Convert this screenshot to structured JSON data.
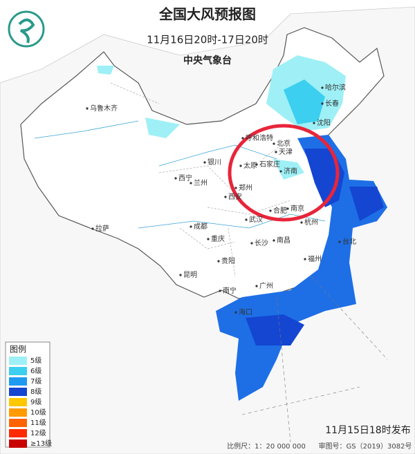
{
  "header": {
    "title": "全国大风预报图",
    "period": "11月16日20时-17日20时",
    "issuer": "中央气象台"
  },
  "cities": [
    "乌鲁木齐",
    "哈尔滨",
    "长春",
    "沈阳",
    "呼和浩特",
    "北京",
    "天津",
    "石家庄",
    "太原",
    "济南",
    "银川",
    "西宁",
    "兰州",
    "郑州",
    "西安",
    "合肥",
    "南京",
    "杭州",
    "拉萨",
    "成都",
    "重庆",
    "武汉",
    "长沙",
    "南昌",
    "福州",
    "台北",
    "贵阳",
    "昆明",
    "南宁",
    "广州",
    "海口"
  ],
  "legend": {
    "title": "图例",
    "items": [
      {
        "label": "5级",
        "color": "#9ef0f6"
      },
      {
        "label": "6级",
        "color": "#3ccff0"
      },
      {
        "label": "7级",
        "color": "#1e9bf0"
      },
      {
        "label": "8级",
        "color": "#1446d2"
      },
      {
        "label": "9级",
        "color": "#ffc800"
      },
      {
        "label": "10级",
        "color": "#ff9a00"
      },
      {
        "label": "11级",
        "color": "#ff6400"
      },
      {
        "label": "12级",
        "color": "#ff2a00"
      },
      {
        "label": "≥13级",
        "color": "#c80000"
      }
    ]
  },
  "footer": {
    "issued": "11月15日18时发布",
    "scale": "比例尺：1：20 000 000",
    "review_number": "审图号：GS（2019）3082号"
  }
}
